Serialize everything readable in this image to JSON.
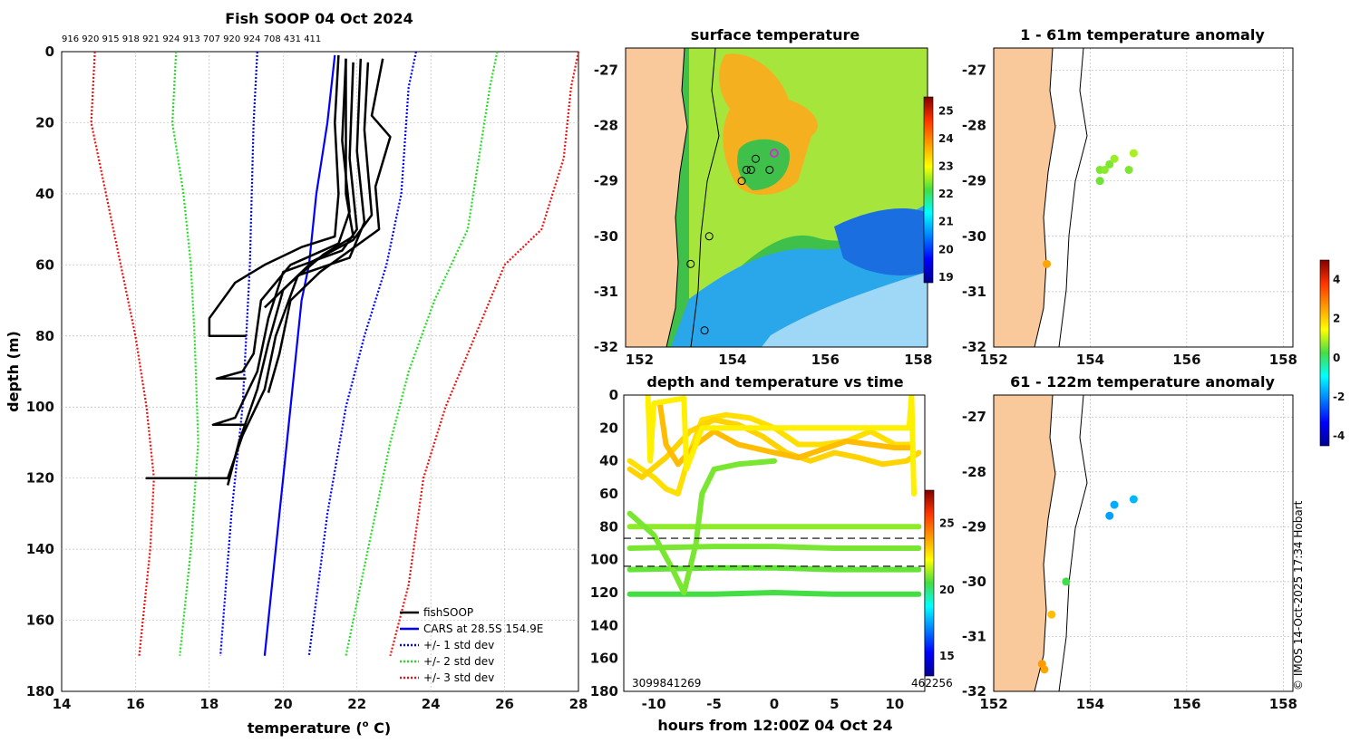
{
  "colors": {
    "land": "#f9c99b",
    "profile": "#000000",
    "cars": "#0000ff",
    "std1": "#0000ff",
    "std2": "#22dd22",
    "std3": "#ee1111"
  },
  "copyright": "© IMOS 14-Oct-2025 17:34 Hobart",
  "chart_data": [
    {
      "id": "profile",
      "type": "line",
      "title": "Fish SOOP 04 Oct 2024",
      "xlabel": "temperature (",
      "xlabel_sup": "o",
      "xlabel_end": " C)",
      "ylabel": "depth (m)",
      "xlim": [
        14,
        28
      ],
      "ylim": [
        0,
        180
      ],
      "xticks": [
        "14",
        "16",
        "18",
        "20",
        "22",
        "24",
        "26",
        "28"
      ],
      "yticks": [
        "0",
        "20",
        "40",
        "60",
        "80",
        "100",
        "120",
        "140",
        "160",
        "180"
      ],
      "logger_ids": "916 920 915 918 921 924 913 707 920 924 708 431 411",
      "legend": [
        "fishSOOP",
        "CARS at 28.5S 154.9E",
        "+/- 1 std dev",
        "+/- 2 std dev",
        "+/- 3 std dev"
      ],
      "series": [
        {
          "name": "CARS at 28.5S 154.9E",
          "style": "solid",
          "color": "#0000ff",
          "points": [
            [
              21.4,
              1
            ],
            [
              21.2,
              20
            ],
            [
              20.9,
              40
            ],
            [
              20.7,
              60
            ],
            [
              20.5,
              70
            ],
            [
              20.3,
              90
            ],
            [
              20.1,
              110
            ],
            [
              19.8,
              140
            ],
            [
              19.5,
              170
            ]
          ]
        },
        {
          "name": "+1 std dev",
          "style": "dot",
          "color": "#0000ff",
          "points": [
            [
              23.6,
              0
            ],
            [
              23.4,
              10
            ],
            [
              23.2,
              40
            ],
            [
              22.8,
              60
            ],
            [
              22.2,
              80
            ],
            [
              21.7,
              100
            ],
            [
              21.2,
              130
            ],
            [
              20.7,
              170
            ]
          ]
        },
        {
          "name": "-1 std dev",
          "style": "dot",
          "color": "#0000ff",
          "points": [
            [
              19.3,
              0
            ],
            [
              19.2,
              20
            ],
            [
              19.1,
              60
            ],
            [
              19.0,
              80
            ],
            [
              18.9,
              100
            ],
            [
              18.6,
              130
            ],
            [
              18.3,
              170
            ]
          ]
        },
        {
          "name": "+2 std dev",
          "style": "dot",
          "color": "#22dd22",
          "points": [
            [
              25.8,
              0
            ],
            [
              25.6,
              10
            ],
            [
              25.0,
              50
            ],
            [
              24.1,
              70
            ],
            [
              23.4,
              90
            ],
            [
              22.9,
              110
            ],
            [
              22.3,
              140
            ],
            [
              21.7,
              170
            ]
          ]
        },
        {
          "name": "-2 std dev",
          "style": "dot",
          "color": "#22dd22",
          "points": [
            [
              17.1,
              0
            ],
            [
              17.0,
              20
            ],
            [
              17.3,
              40
            ],
            [
              17.5,
              60
            ],
            [
              17.6,
              80
            ],
            [
              17.7,
              110
            ],
            [
              17.5,
              140
            ],
            [
              17.2,
              170
            ]
          ]
        },
        {
          "name": "+3 std dev",
          "style": "dot",
          "color": "#ee1111",
          "points": [
            [
              28.0,
              0
            ],
            [
              27.8,
              10
            ],
            [
              27.6,
              30
            ],
            [
              27.0,
              50
            ],
            [
              26.0,
              60
            ],
            [
              25.2,
              80
            ],
            [
              24.4,
              100
            ],
            [
              23.8,
              120
            ],
            [
              23.4,
              150
            ],
            [
              22.9,
              170
            ]
          ]
        },
        {
          "name": "-3 std dev",
          "style": "dot",
          "color": "#ee1111",
          "points": [
            [
              14.9,
              0
            ],
            [
              14.8,
              20
            ],
            [
              15.2,
              40
            ],
            [
              15.5,
              55
            ],
            [
              16.0,
              80
            ],
            [
              16.3,
              100
            ],
            [
              16.5,
              120
            ],
            [
              16.4,
              140
            ],
            [
              16.1,
              170
            ]
          ]
        }
      ],
      "fishsoop": [
        [
          [
            21.5,
            1
          ],
          [
            21.4,
            20
          ],
          [
            21.5,
            40
          ],
          [
            21.4,
            52
          ],
          [
            20.5,
            55
          ],
          [
            19.5,
            60
          ],
          [
            18.7,
            65
          ],
          [
            18.0,
            75
          ],
          [
            18.0,
            80
          ],
          [
            19.0,
            80
          ]
        ],
        [
          [
            21.7,
            2
          ],
          [
            21.6,
            25
          ],
          [
            21.8,
            45
          ],
          [
            21.5,
            54
          ],
          [
            20.2,
            60
          ],
          [
            19.4,
            70
          ],
          [
            19.2,
            85
          ],
          [
            18.9,
            90
          ],
          [
            18.2,
            92
          ],
          [
            19.0,
            92
          ]
        ],
        [
          [
            21.9,
            3
          ],
          [
            21.8,
            30
          ],
          [
            22.0,
            50
          ],
          [
            21.6,
            56
          ],
          [
            20.0,
            62
          ],
          [
            19.6,
            75
          ],
          [
            19.3,
            90
          ],
          [
            18.7,
            103
          ],
          [
            18.1,
            105
          ],
          [
            19.0,
            105
          ]
        ],
        [
          [
            22.1,
            2
          ],
          [
            22.0,
            28
          ],
          [
            22.2,
            48
          ],
          [
            21.8,
            58
          ],
          [
            20.4,
            63
          ],
          [
            19.8,
            80
          ],
          [
            19.5,
            95
          ],
          [
            18.9,
            108
          ],
          [
            18.5,
            120
          ],
          [
            16.3,
            120
          ],
          [
            16.8,
            120
          ]
        ],
        [
          [
            22.3,
            3
          ],
          [
            22.2,
            22
          ],
          [
            22.4,
            46
          ],
          [
            21.9,
            53
          ],
          [
            20.8,
            59
          ],
          [
            20.0,
            67
          ],
          [
            19.6,
            82
          ],
          [
            19.3,
            95
          ],
          [
            18.8,
            110
          ],
          [
            18.5,
            122
          ]
        ],
        [
          [
            22.7,
            2
          ],
          [
            22.4,
            18
          ],
          [
            22.9,
            24
          ],
          [
            22.5,
            38
          ],
          [
            22.6,
            50
          ],
          [
            21.0,
            62
          ],
          [
            20.2,
            70
          ],
          [
            19.9,
            85
          ],
          [
            19.6,
            96
          ]
        ],
        [
          [
            21.7,
            2
          ],
          [
            21.7,
            40
          ],
          [
            21.9,
            52
          ],
          [
            21.1,
            57
          ],
          [
            20.2,
            65
          ],
          [
            19.5,
            72
          ]
        ]
      ]
    },
    {
      "id": "sst",
      "type": "heatmap",
      "title": "surface temperature",
      "xlim": [
        151.7,
        158.2
      ],
      "ylim": [
        -32,
        -26.6
      ],
      "xticks": [
        "152",
        "154",
        "156",
        "158"
      ],
      "yticks": [
        "-27",
        "-28",
        "-29",
        "-30",
        "-31",
        "-32"
      ],
      "colorbar_ticks": [
        "19",
        "20",
        "21",
        "22",
        "23",
        "24",
        "25"
      ],
      "stations": [
        [
          153.4,
          -31.7
        ],
        [
          153.1,
          -30.5
        ],
        [
          153.5,
          -30.0
        ],
        [
          154.2,
          -29.0
        ],
        [
          154.3,
          -28.8
        ],
        [
          154.4,
          -28.8
        ],
        [
          154.5,
          -28.6
        ],
        [
          154.8,
          -28.8
        ],
        [
          154.9,
          -28.5
        ]
      ]
    },
    {
      "id": "timeseries",
      "type": "scatter",
      "title": "depth and temperature vs time",
      "xlabel": "hours from 12:00Z 04 Oct 24",
      "xlim": [
        -12.5,
        12.5
      ],
      "ylim": [
        0,
        180
      ],
      "xticks": [
        "-10",
        "-5",
        "0",
        "5",
        "10"
      ],
      "yticks": [
        "0",
        "20",
        "40",
        "60",
        "80",
        "100",
        "120",
        "140",
        "160",
        "180"
      ],
      "colorbar_ticks": [
        "15",
        "20",
        "25"
      ],
      "bottom_left_text": "3099841269",
      "bottom_right_text": "462256",
      "reference_lines": [
        87,
        104
      ],
      "tracks": [
        {
          "temp": 20.5,
          "points": [
            [
              -12,
              121
            ],
            [
              -5,
              121
            ],
            [
              0,
              120
            ],
            [
              5,
              121
            ],
            [
              12,
              121
            ]
          ]
        },
        {
          "temp": 20.8,
          "points": [
            [
              -12,
              106
            ],
            [
              -5,
              105
            ],
            [
              0,
              105
            ],
            [
              5,
              106
            ],
            [
              12,
              106
            ]
          ]
        },
        {
          "temp": 21.0,
          "points": [
            [
              -12,
              93
            ],
            [
              -5,
              92
            ],
            [
              0,
              92
            ],
            [
              5,
              93
            ],
            [
              12,
              93
            ]
          ]
        },
        {
          "temp": 21.2,
          "points": [
            [
              -12,
              80
            ],
            [
              -5,
              80
            ],
            [
              0,
              80
            ],
            [
              5,
              80
            ],
            [
              12,
              80
            ]
          ]
        },
        {
          "temp": 21.0,
          "points": [
            [
              -12,
              72
            ],
            [
              -10,
              85
            ],
            [
              -8.5,
              105
            ],
            [
              -7.5,
              120
            ],
            [
              -6.5,
              90
            ],
            [
              -6,
              60
            ],
            [
              -5,
              45
            ],
            [
              -3,
              42
            ],
            [
              0,
              40
            ]
          ]
        },
        {
          "temp": 22.8,
          "points": [
            [
              -12,
              40
            ],
            [
              -11,
              45
            ],
            [
              -10,
              50
            ],
            [
              -9,
              57
            ],
            [
              -8,
              60
            ],
            [
              -7,
              35
            ],
            [
              -6,
              15
            ],
            [
              -4,
              12
            ],
            [
              -2,
              14
            ],
            [
              0,
              20
            ],
            [
              2,
              30
            ],
            [
              4,
              30
            ],
            [
              6,
              28
            ],
            [
              8,
              22
            ],
            [
              10,
              30
            ],
            [
              11.5,
              30
            ]
          ]
        },
        {
          "temp": 23.0,
          "points": [
            [
              -12,
              45
            ],
            [
              -11,
              50
            ],
            [
              -9,
              38
            ],
            [
              -7,
              22
            ],
            [
              -5,
              15
            ],
            [
              -3,
              18
            ],
            [
              -1,
              25
            ],
            [
              1,
              35
            ],
            [
              3,
              40
            ],
            [
              5,
              35
            ],
            [
              7,
              38
            ],
            [
              9,
              42
            ],
            [
              11,
              40
            ],
            [
              12,
              35
            ]
          ]
        },
        {
          "temp": 23.4,
          "points": [
            [
              -9.5,
              5
            ],
            [
              -9,
              30
            ],
            [
              -8,
              42
            ],
            [
              -6.5,
              30
            ],
            [
              -5,
              22
            ],
            [
              -3,
              30
            ],
            [
              0,
              35
            ],
            [
              2,
              38
            ],
            [
              4,
              33
            ],
            [
              6,
              28
            ],
            [
              8,
              30
            ],
            [
              10,
              32
            ],
            [
              11.5,
              32
            ]
          ]
        },
        {
          "temp": 22.5,
          "points": [
            [
              -10.5,
              0
            ],
            [
              -10.3,
              40
            ],
            [
              -10,
              5
            ],
            [
              -7.5,
              2
            ],
            [
              -7.3,
              45
            ],
            [
              -6,
              20
            ],
            [
              11.2,
              20
            ],
            [
              11.4,
              0
            ],
            [
              11.6,
              60
            ]
          ]
        }
      ]
    },
    {
      "id": "anom1",
      "type": "scatter",
      "title": "1 - 61m temperature anomaly",
      "xlim": [
        152,
        158.2
      ],
      "ylim": [
        -32,
        -26.6
      ],
      "xticks": [
        "152",
        "154",
        "156",
        "158"
      ],
      "yticks": [
        "-27",
        "-28",
        "-29",
        "-30",
        "-31",
        "-32"
      ],
      "points": [
        [
          154.2,
          -29.0,
          0.5
        ],
        [
          154.2,
          -28.8,
          0.6
        ],
        [
          154.3,
          -28.8,
          0.7
        ],
        [
          154.4,
          -28.7,
          0.6
        ],
        [
          154.5,
          -28.6,
          0.8
        ],
        [
          154.8,
          -28.8,
          0.6
        ],
        [
          154.9,
          -28.5,
          0.9
        ],
        [
          153.1,
          -30.5,
          2.5
        ]
      ]
    },
    {
      "id": "anom2",
      "type": "scatter",
      "title": "61 - 122m temperature anomaly",
      "xlim": [
        152,
        158.2
      ],
      "ylim": [
        -32,
        -26.6
      ],
      "xticks": [
        "152",
        "154",
        "156",
        "158"
      ],
      "yticks": [
        "-27",
        "-28",
        "-29",
        "-30",
        "-31",
        "-32"
      ],
      "colorbar_ticks": [
        "-4",
        "-2",
        "0",
        "2",
        "4"
      ],
      "points": [
        [
          154.4,
          -28.8,
          -1.8
        ],
        [
          154.5,
          -28.6,
          -1.7
        ],
        [
          154.9,
          -28.5,
          -1.6
        ],
        [
          153.5,
          -30.0,
          0.2
        ],
        [
          153.2,
          -30.6,
          2.2
        ],
        [
          153.0,
          -31.5,
          2.6
        ],
        [
          153.05,
          -31.6,
          2.5
        ]
      ]
    }
  ]
}
